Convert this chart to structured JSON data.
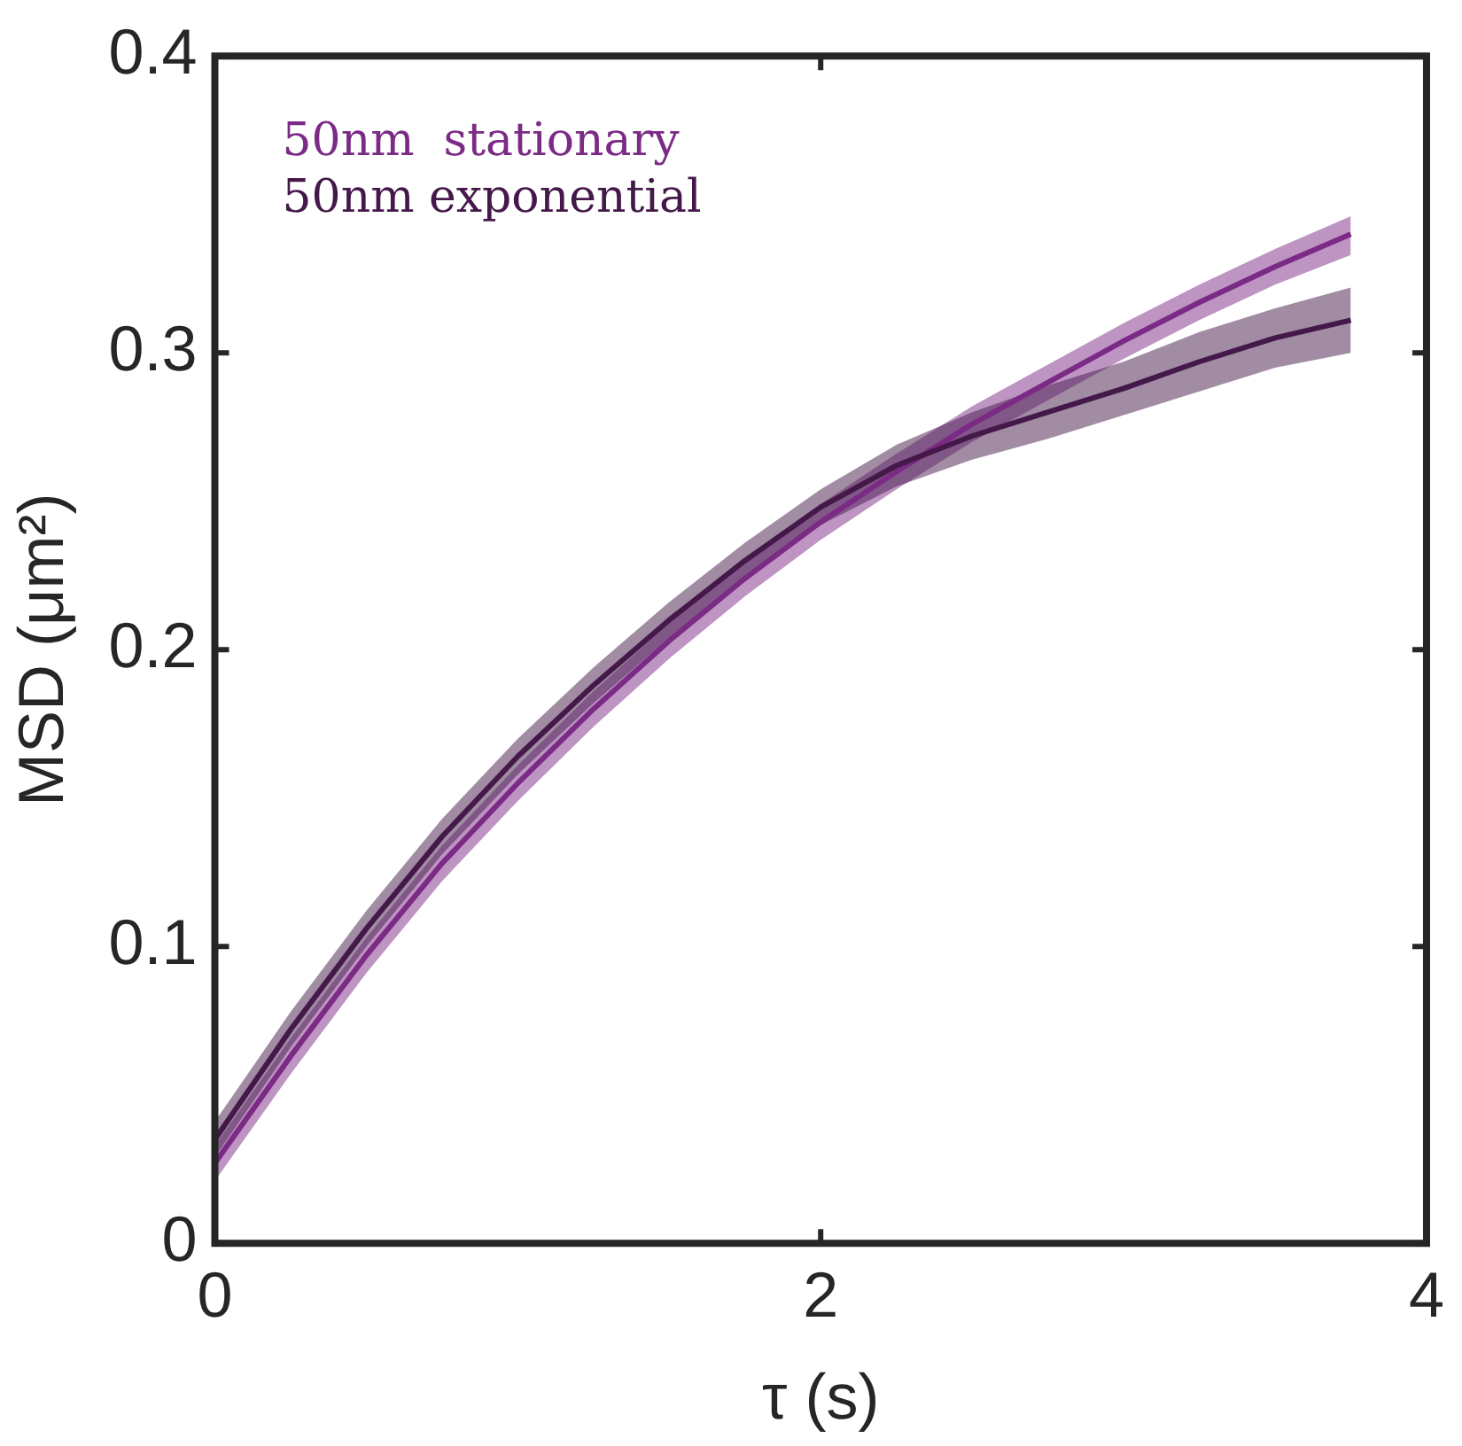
{
  "chart_data": {
    "type": "line",
    "xlabel": "τ (s)",
    "ylabel": "MSD (μm²)",
    "xlim": [
      0,
      4
    ],
    "xticks": [
      0,
      2,
      4
    ],
    "ylim": [
      0,
      0.4
    ],
    "yticks": [
      0,
      0.1,
      0.2,
      0.3,
      0.4
    ],
    "grid": false,
    "legend": "top left",
    "marker": "none",
    "line_style": "solid",
    "x": [
      0,
      0.25,
      0.5,
      0.75,
      1,
      1.25,
      1.5,
      1.75,
      2,
      2.25,
      2.5,
      2.75,
      3,
      3.25,
      3.5,
      3.75
    ],
    "series": [
      {
        "name": "50nm  stationary",
        "color": "#7b2a85",
        "values": [
          0.027,
          0.063,
          0.097,
          0.128,
          0.155,
          0.18,
          0.203,
          0.224,
          0.243,
          0.26,
          0.276,
          0.29,
          0.304,
          0.317,
          0.329,
          0.34
        ],
        "lower": [
          0.021,
          0.057,
          0.091,
          0.122,
          0.149,
          0.174,
          0.197,
          0.218,
          0.237,
          0.254,
          0.27,
          0.284,
          0.298,
          0.311,
          0.323,
          0.333
        ],
        "upper": [
          0.033,
          0.069,
          0.103,
          0.134,
          0.161,
          0.186,
          0.209,
          0.23,
          0.249,
          0.266,
          0.282,
          0.296,
          0.31,
          0.323,
          0.335,
          0.346
        ]
      },
      {
        "name": "50nm exponential",
        "color": "#44194a",
        "values": [
          0.035,
          0.072,
          0.106,
          0.137,
          0.164,
          0.188,
          0.21,
          0.23,
          0.248,
          0.262,
          0.272,
          0.28,
          0.288,
          0.297,
          0.305,
          0.311
        ],
        "lower": [
          0.029,
          0.066,
          0.1,
          0.131,
          0.158,
          0.182,
          0.204,
          0.224,
          0.242,
          0.255,
          0.264,
          0.271,
          0.279,
          0.287,
          0.295,
          0.3
        ],
        "upper": [
          0.041,
          0.078,
          0.112,
          0.143,
          0.17,
          0.194,
          0.216,
          0.236,
          0.254,
          0.269,
          0.28,
          0.289,
          0.297,
          0.307,
          0.315,
          0.322
        ]
      }
    ]
  }
}
